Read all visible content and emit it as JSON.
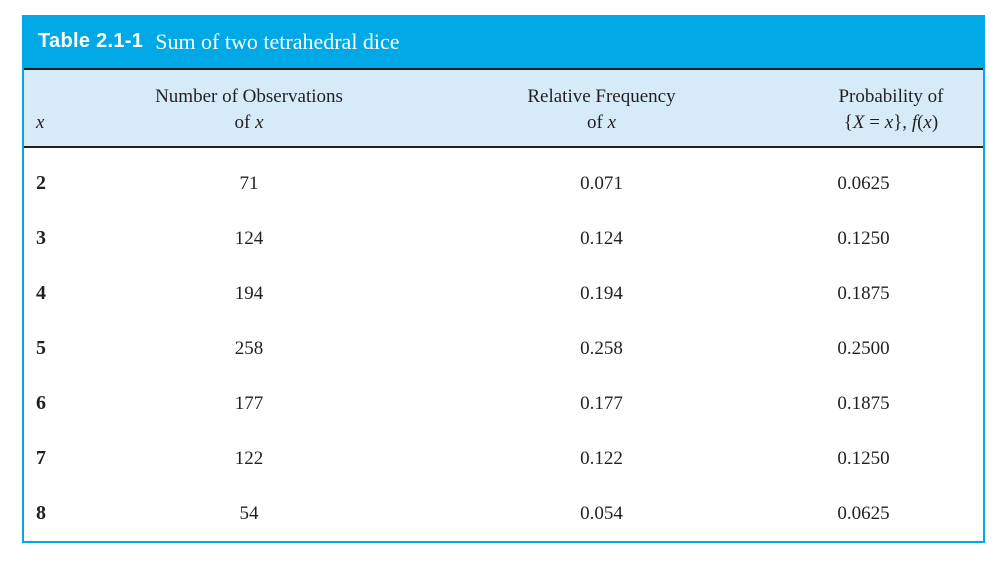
{
  "title": {
    "label": "Table 2.1-1",
    "caption": "Sum of two tetrahedral dice"
  },
  "columns": {
    "c1": {
      "symbol": "x"
    },
    "c2": {
      "line1": "Number of Observations",
      "line2_pre": "of ",
      "line2_var": "x"
    },
    "c3": {
      "line1": "Relative Frequency",
      "line2_pre": "of ",
      "line2_var": "x"
    },
    "c4": {
      "line1": "Probability of",
      "line2": {
        "open_brace": "{",
        "X": "X",
        "equals": " = ",
        "x": "x",
        "close_brace": "}, ",
        "f": "f",
        "open_paren": "(",
        "x2": "x",
        "close_paren": ")"
      }
    }
  },
  "rows": [
    {
      "x": "2",
      "observations": "71",
      "relative_frequency": "0.071",
      "probability": "0.0625"
    },
    {
      "x": "3",
      "observations": "124",
      "relative_frequency": "0.124",
      "probability": "0.1250"
    },
    {
      "x": "4",
      "observations": "194",
      "relative_frequency": "0.194",
      "probability": "0.1875"
    },
    {
      "x": "5",
      "observations": "258",
      "relative_frequency": "0.258",
      "probability": "0.2500"
    },
    {
      "x": "6",
      "observations": "177",
      "relative_frequency": "0.177",
      "probability": "0.1875"
    },
    {
      "x": "7",
      "observations": "122",
      "relative_frequency": "0.122",
      "probability": "0.1250"
    },
    {
      "x": "8",
      "observations": "54",
      "relative_frequency": "0.054",
      "probability": "0.0625"
    }
  ],
  "colors": {
    "accent_cyan": "#00a9e6",
    "header_band_blue": "#d6eaf8",
    "rule_dark": "#231f20",
    "text": "#231f20",
    "title_text": "#ffffff"
  }
}
